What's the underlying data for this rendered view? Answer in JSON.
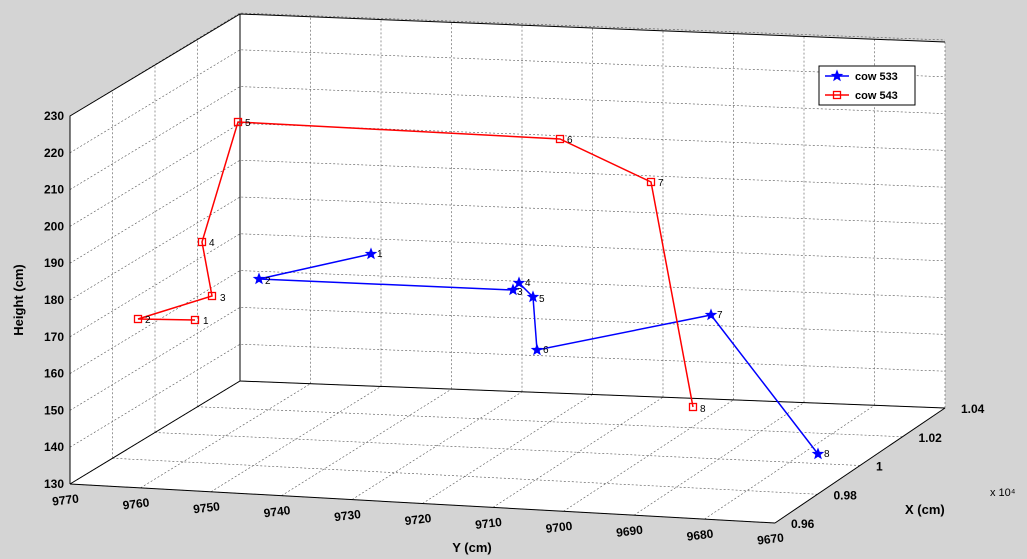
{
  "chart_data": {
    "type": "line3d",
    "title": "",
    "xlabel": "X (cm)",
    "ylabel": "Y (cm)",
    "zlabel": "Height (cm)",
    "x_exponent_label": "x 10⁴",
    "x_ticks": [
      "0.96",
      "0.98",
      "1",
      "1.02",
      "1.04"
    ],
    "y_ticks": [
      "9770",
      "9760",
      "9750",
      "9740",
      "9730",
      "9720",
      "9710",
      "9700",
      "9690",
      "9680",
      "9670"
    ],
    "z_ticks": [
      "130",
      "140",
      "150",
      "160",
      "170",
      "180",
      "190",
      "200",
      "210",
      "220",
      "230"
    ],
    "zlim": [
      130,
      230
    ],
    "grid": true,
    "legend_position": "top-right",
    "series": [
      {
        "name": "cow 533",
        "color": "#0000ff",
        "marker": "star",
        "point_labels": [
          "1",
          "2",
          "3",
          "4",
          "5",
          "6",
          "7",
          "8"
        ]
      },
      {
        "name": "cow 543",
        "color": "#ff0000",
        "marker": "square",
        "point_labels": [
          "1",
          "2",
          "3",
          "4",
          "5",
          "6",
          "7",
          "8"
        ]
      }
    ]
  }
}
